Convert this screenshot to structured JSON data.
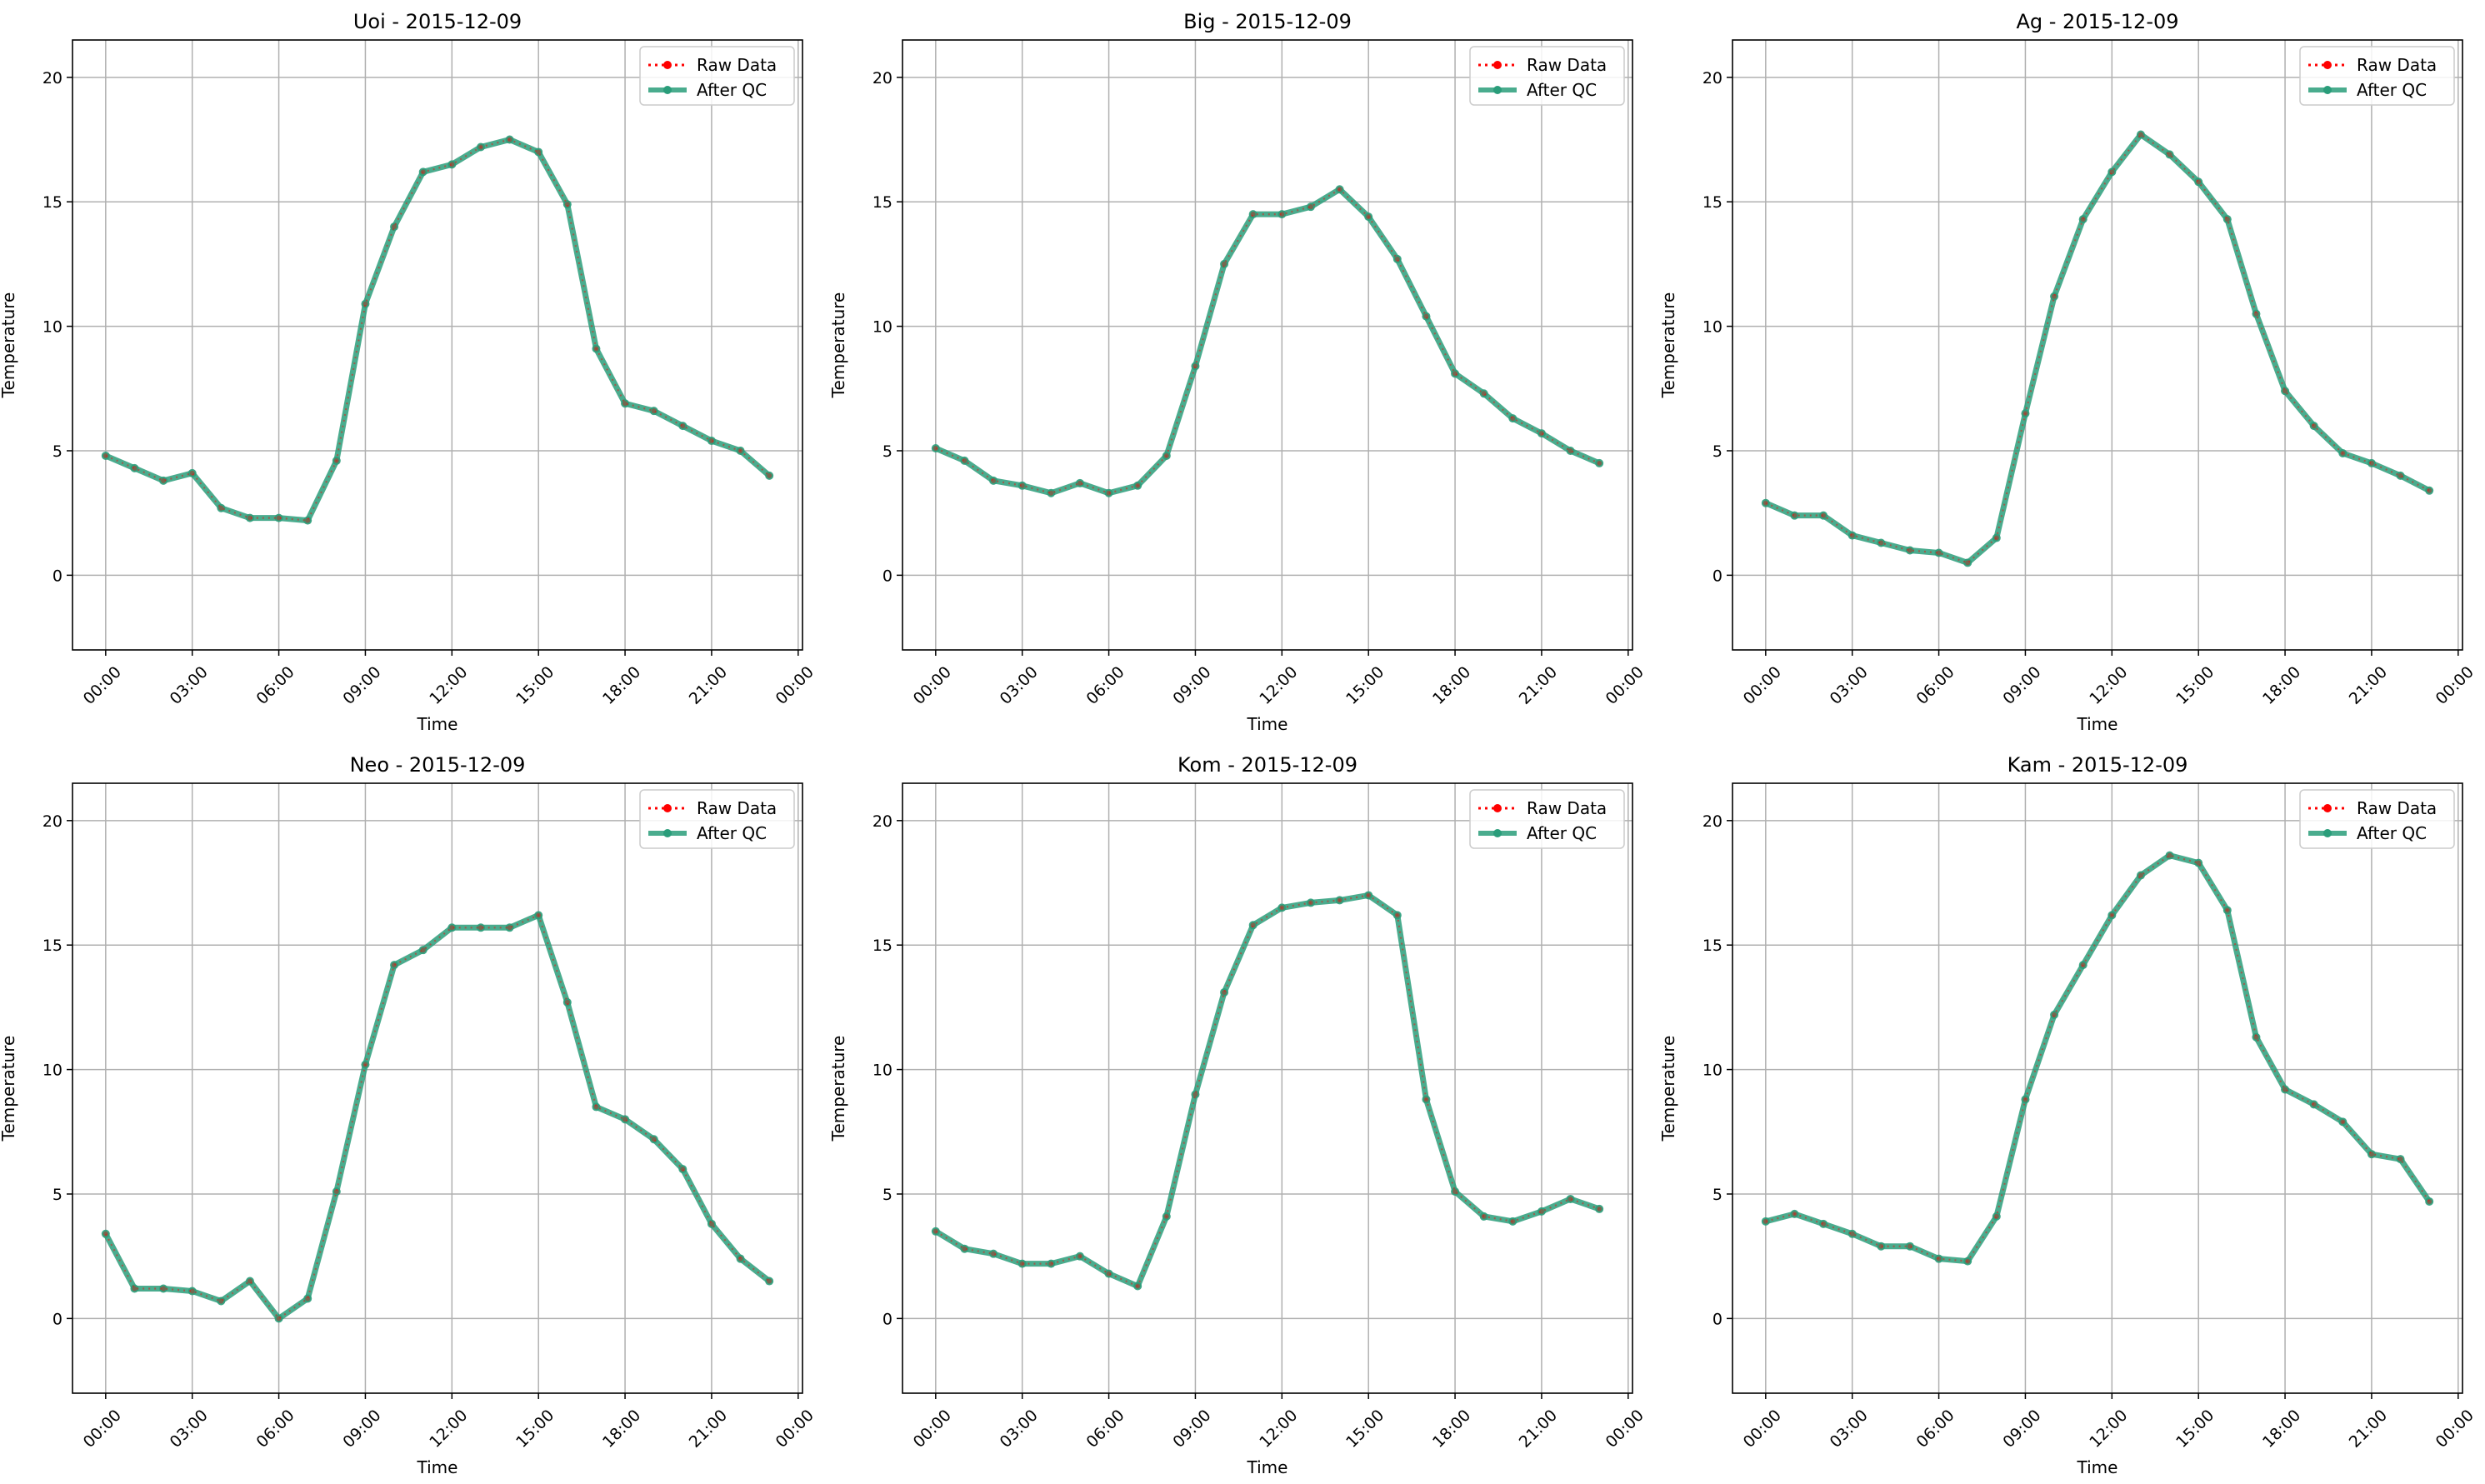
{
  "colors": {
    "raw": "#ff0000",
    "qc": "#2a9d7a",
    "grid": "#b0b0b0",
    "axis": "#000000"
  },
  "legend": {
    "raw_label": "Raw Data",
    "qc_label": "After QC",
    "placement": "upper-right"
  },
  "chart_data": [
    {
      "type": "line",
      "title": "Uoi - 2015-12-09",
      "xlabel": "Time",
      "ylabel": "Temperature",
      "xticks": [
        "00:00",
        "03:00",
        "06:00",
        "09:00",
        "12:00",
        "15:00",
        "18:00",
        "21:00",
        "00:00"
      ],
      "yticks": [
        0,
        5,
        10,
        15,
        20
      ],
      "ylim": [
        -3,
        21.5
      ],
      "grid": true,
      "hours": [
        0,
        1,
        2,
        3,
        4,
        5,
        6,
        7,
        8,
        9,
        10,
        11,
        12,
        13,
        14,
        15,
        16,
        17,
        18,
        19,
        20,
        21,
        22,
        23
      ],
      "series": [
        {
          "name": "Raw Data",
          "values": [
            4.8,
            4.3,
            3.8,
            4.1,
            2.7,
            2.3,
            2.3,
            2.2,
            4.6,
            10.9,
            14.0,
            16.2,
            16.5,
            17.2,
            17.5,
            17.0,
            14.9,
            9.1,
            6.9,
            6.6,
            6.0,
            5.4,
            5.0,
            4.0
          ]
        },
        {
          "name": "After QC",
          "values": [
            4.8,
            4.3,
            3.8,
            4.1,
            2.7,
            2.3,
            2.3,
            2.2,
            4.6,
            10.9,
            14.0,
            16.2,
            16.5,
            17.2,
            17.5,
            17.0,
            14.9,
            9.1,
            6.9,
            6.6,
            6.0,
            5.4,
            5.0,
            4.0
          ]
        }
      ]
    },
    {
      "type": "line",
      "title": "Big - 2015-12-09",
      "xlabel": "Time",
      "ylabel": "Temperature",
      "xticks": [
        "00:00",
        "03:00",
        "06:00",
        "09:00",
        "12:00",
        "15:00",
        "18:00",
        "21:00",
        "00:00"
      ],
      "yticks": [
        0,
        5,
        10,
        15,
        20
      ],
      "ylim": [
        -3,
        21.5
      ],
      "grid": true,
      "hours": [
        0,
        1,
        2,
        3,
        4,
        5,
        6,
        7,
        8,
        9,
        10,
        11,
        12,
        13,
        14,
        15,
        16,
        17,
        18,
        19,
        20,
        21,
        22,
        23
      ],
      "series": [
        {
          "name": "Raw Data",
          "values": [
            5.1,
            4.6,
            3.8,
            3.6,
            3.3,
            3.7,
            3.3,
            3.6,
            4.8,
            8.4,
            12.5,
            14.5,
            14.5,
            14.8,
            15.5,
            14.4,
            12.7,
            10.4,
            8.1,
            7.3,
            6.3,
            5.7,
            5.0,
            4.5
          ]
        },
        {
          "name": "After QC",
          "values": [
            5.1,
            4.6,
            3.8,
            3.6,
            3.3,
            3.7,
            3.3,
            3.6,
            4.8,
            8.4,
            12.5,
            14.5,
            14.5,
            14.8,
            15.5,
            14.4,
            12.7,
            10.4,
            8.1,
            7.3,
            6.3,
            5.7,
            5.0,
            4.5
          ]
        }
      ]
    },
    {
      "type": "line",
      "title": "Ag - 2015-12-09",
      "xlabel": "Time",
      "ylabel": "Temperature",
      "xticks": [
        "00:00",
        "03:00",
        "06:00",
        "09:00",
        "12:00",
        "15:00",
        "18:00",
        "21:00",
        "00:00"
      ],
      "yticks": [
        0,
        5,
        10,
        15,
        20
      ],
      "ylim": [
        -3,
        21.5
      ],
      "grid": true,
      "hours": [
        0,
        1,
        2,
        3,
        4,
        5,
        6,
        7,
        8,
        9,
        10,
        11,
        12,
        13,
        14,
        15,
        16,
        17,
        18,
        19,
        20,
        21,
        22,
        23
      ],
      "series": [
        {
          "name": "Raw Data",
          "values": [
            2.9,
            2.4,
            2.4,
            1.6,
            1.3,
            1.0,
            0.9,
            0.5,
            1.5,
            6.5,
            11.2,
            14.3,
            16.2,
            17.7,
            16.9,
            15.8,
            14.3,
            10.5,
            7.4,
            6.0,
            4.9,
            4.5,
            4.0,
            3.4
          ]
        },
        {
          "name": "After QC",
          "values": [
            2.9,
            2.4,
            2.4,
            1.6,
            1.3,
            1.0,
            0.9,
            0.5,
            1.5,
            6.5,
            11.2,
            14.3,
            16.2,
            17.7,
            16.9,
            15.8,
            14.3,
            10.5,
            7.4,
            6.0,
            4.9,
            4.5,
            4.0,
            3.4
          ]
        }
      ]
    },
    {
      "type": "line",
      "title": "Neo - 2015-12-09",
      "xlabel": "Time",
      "ylabel": "Temperature",
      "xticks": [
        "00:00",
        "03:00",
        "06:00",
        "09:00",
        "12:00",
        "15:00",
        "18:00",
        "21:00",
        "00:00"
      ],
      "yticks": [
        0,
        5,
        10,
        15,
        20
      ],
      "ylim": [
        -3,
        21.5
      ],
      "grid": true,
      "hours": [
        0,
        1,
        2,
        3,
        4,
        5,
        6,
        7,
        8,
        9,
        10,
        11,
        12,
        13,
        14,
        15,
        16,
        17,
        18,
        19,
        20,
        21,
        22,
        23
      ],
      "series": [
        {
          "name": "Raw Data",
          "values": [
            3.4,
            1.2,
            1.2,
            1.1,
            0.7,
            1.5,
            0.0,
            0.8,
            5.1,
            10.2,
            14.2,
            14.8,
            15.7,
            15.7,
            15.7,
            16.2,
            12.7,
            8.5,
            8.0,
            7.2,
            6.0,
            3.8,
            2.4,
            1.5
          ]
        },
        {
          "name": "After QC",
          "values": [
            3.4,
            1.2,
            1.2,
            1.1,
            0.7,
            1.5,
            0.0,
            0.8,
            5.1,
            10.2,
            14.2,
            14.8,
            15.7,
            15.7,
            15.7,
            16.2,
            12.7,
            8.5,
            8.0,
            7.2,
            6.0,
            3.8,
            2.4,
            1.5
          ]
        }
      ]
    },
    {
      "type": "line",
      "title": "Kom - 2015-12-09",
      "xlabel": "Time",
      "ylabel": "Temperature",
      "xticks": [
        "00:00",
        "03:00",
        "06:00",
        "09:00",
        "12:00",
        "15:00",
        "18:00",
        "21:00",
        "00:00"
      ],
      "yticks": [
        0,
        5,
        10,
        15,
        20
      ],
      "ylim": [
        -3,
        21.5
      ],
      "grid": true,
      "hours": [
        0,
        1,
        2,
        3,
        4,
        5,
        6,
        7,
        8,
        9,
        10,
        11,
        12,
        13,
        14,
        15,
        16,
        17,
        18,
        19,
        20,
        21,
        22,
        23
      ],
      "series": [
        {
          "name": "Raw Data",
          "values": [
            3.5,
            2.8,
            2.6,
            2.2,
            2.2,
            2.5,
            1.8,
            1.3,
            4.1,
            9.0,
            13.1,
            15.8,
            16.5,
            16.7,
            16.8,
            17.0,
            16.2,
            8.8,
            5.1,
            4.1,
            3.9,
            4.3,
            4.8,
            4.4
          ]
        },
        {
          "name": "After QC",
          "values": [
            3.5,
            2.8,
            2.6,
            2.2,
            2.2,
            2.5,
            1.8,
            1.3,
            4.1,
            9.0,
            13.1,
            15.8,
            16.5,
            16.7,
            16.8,
            17.0,
            16.2,
            8.8,
            5.1,
            4.1,
            3.9,
            4.3,
            4.8,
            4.4
          ]
        }
      ]
    },
    {
      "type": "line",
      "title": "Kam - 2015-12-09",
      "xlabel": "Time",
      "ylabel": "Temperature",
      "xticks": [
        "00:00",
        "03:00",
        "06:00",
        "09:00",
        "12:00",
        "15:00",
        "18:00",
        "21:00",
        "00:00"
      ],
      "yticks": [
        0,
        5,
        10,
        15,
        20
      ],
      "ylim": [
        -3,
        21.5
      ],
      "grid": true,
      "hours": [
        0,
        1,
        2,
        3,
        4,
        5,
        6,
        7,
        8,
        9,
        10,
        11,
        12,
        13,
        14,
        15,
        16,
        17,
        18,
        19,
        20,
        21,
        22,
        23
      ],
      "series": [
        {
          "name": "Raw Data",
          "values": [
            3.9,
            4.2,
            3.8,
            3.4,
            2.9,
            2.9,
            2.4,
            2.3,
            4.1,
            8.8,
            12.2,
            14.2,
            16.2,
            17.8,
            18.6,
            18.3,
            16.4,
            11.3,
            9.2,
            8.6,
            7.9,
            6.6,
            6.4,
            4.7
          ]
        },
        {
          "name": "After QC",
          "values": [
            3.9,
            4.2,
            3.8,
            3.4,
            2.9,
            2.9,
            2.4,
            2.3,
            4.1,
            8.8,
            12.2,
            14.2,
            16.2,
            17.8,
            18.6,
            18.3,
            16.4,
            11.3,
            9.2,
            8.6,
            7.9,
            6.6,
            6.4,
            4.7
          ]
        }
      ]
    }
  ]
}
